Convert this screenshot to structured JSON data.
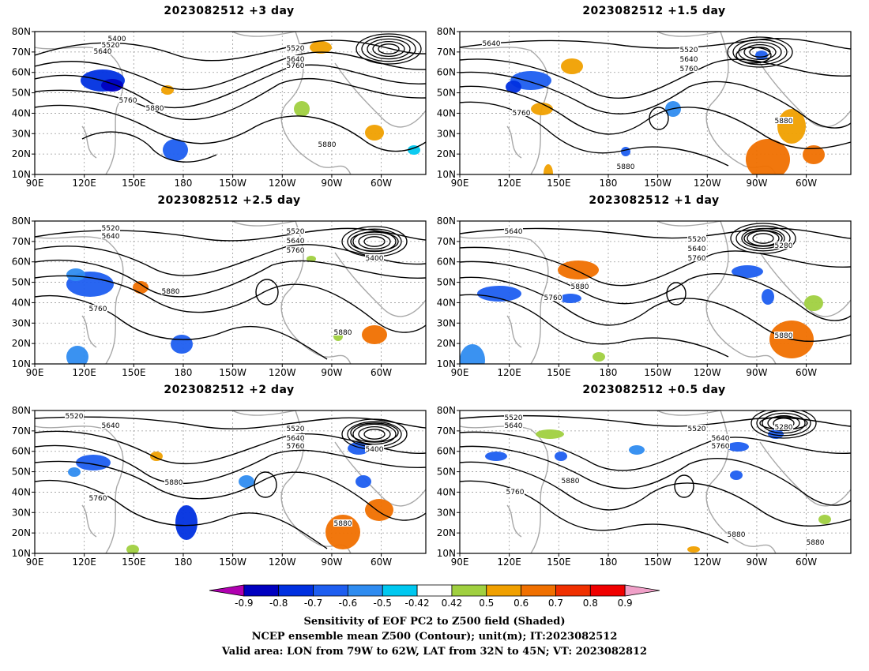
{
  "panels": [
    {
      "title": "2023082512  +3 day",
      "contour_labels": [
        "5400",
        "5520",
        "5640",
        "5520",
        "5640",
        "5760",
        "5760",
        "5880",
        "5880"
      ]
    },
    {
      "title": "2023082512  +1.5 day",
      "contour_labels": [
        "5640",
        "5520",
        "5640",
        "5760",
        "5760",
        "5880",
        "5880"
      ]
    },
    {
      "title": "2023082512  +2.5 day",
      "contour_labels": [
        "5520",
        "5640",
        "5520",
        "5640",
        "5760",
        "5400",
        "5760",
        "5880",
        "5880"
      ]
    },
    {
      "title": "2023082512  +1 day",
      "contour_labels": [
        "5640",
        "5520",
        "5640",
        "5760",
        "5280",
        "5760",
        "5880",
        "5880"
      ]
    },
    {
      "title": "2023082512  +2 day",
      "contour_labels": [
        "5520",
        "5640",
        "5520",
        "5640",
        "5760",
        "5400",
        "5880",
        "5760",
        "5880"
      ]
    },
    {
      "title": "2023082512  +0.5 day",
      "contour_labels": [
        "5520",
        "5640",
        "5520",
        "5640",
        "5760",
        "5280",
        "5880",
        "5760",
        "5880",
        "5880"
      ]
    }
  ],
  "y_ticks": [
    "80N",
    "70N",
    "60N",
    "50N",
    "40N",
    "30N",
    "20N",
    "10N"
  ],
  "x_ticks": [
    "90E",
    "120E",
    "150E",
    "180",
    "150W",
    "120W",
    "90W",
    "60W"
  ],
  "legend": {
    "labels": [
      "-0.9",
      "-0.8",
      "-0.7",
      "-0.6",
      "-0.5",
      "-0.42",
      "0.42",
      "0.5",
      "0.6",
      "0.7",
      "0.8",
      "0.9"
    ],
    "colors": [
      "#b000b0",
      "#0000c0",
      "#0030e0",
      "#1e5ef0",
      "#2f8cf0",
      "#00c8f0",
      "#ffffff",
      "#a0d040",
      "#f0a000",
      "#f07000",
      "#f03000",
      "#f00000",
      "#f0a0c8"
    ]
  },
  "caption": {
    "line1": "Sensitivity of EOF PC2 to Z500 field (Shaded)",
    "line2": "NCEP ensemble mean Z500 (Contour); unit(m); IT:2023082512",
    "line3": "Valid area: LON from 79W to 62W, LAT from 32N to 45N; VT: 2023082812"
  }
}
